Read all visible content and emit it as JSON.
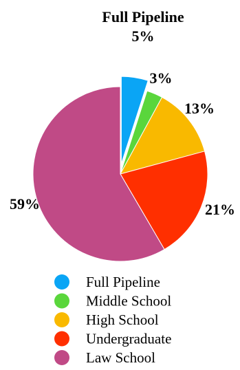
{
  "chart_data": {
    "type": "pie",
    "title": "Full Pipeline",
    "categories": [
      "Full Pipeline",
      "Middle School",
      "High School",
      "Undergraduate",
      "Law School"
    ],
    "values": [
      5,
      3,
      13,
      21,
      59
    ],
    "labels": [
      "5%",
      "3%",
      "13%",
      "21%",
      "59%"
    ],
    "colors": [
      "#0aa5f5",
      "#5ad63c",
      "#f9b900",
      "#ff2f00",
      "#c04a86"
    ],
    "exploded": [
      "Full Pipeline"
    ],
    "legend_position": "bottom"
  }
}
